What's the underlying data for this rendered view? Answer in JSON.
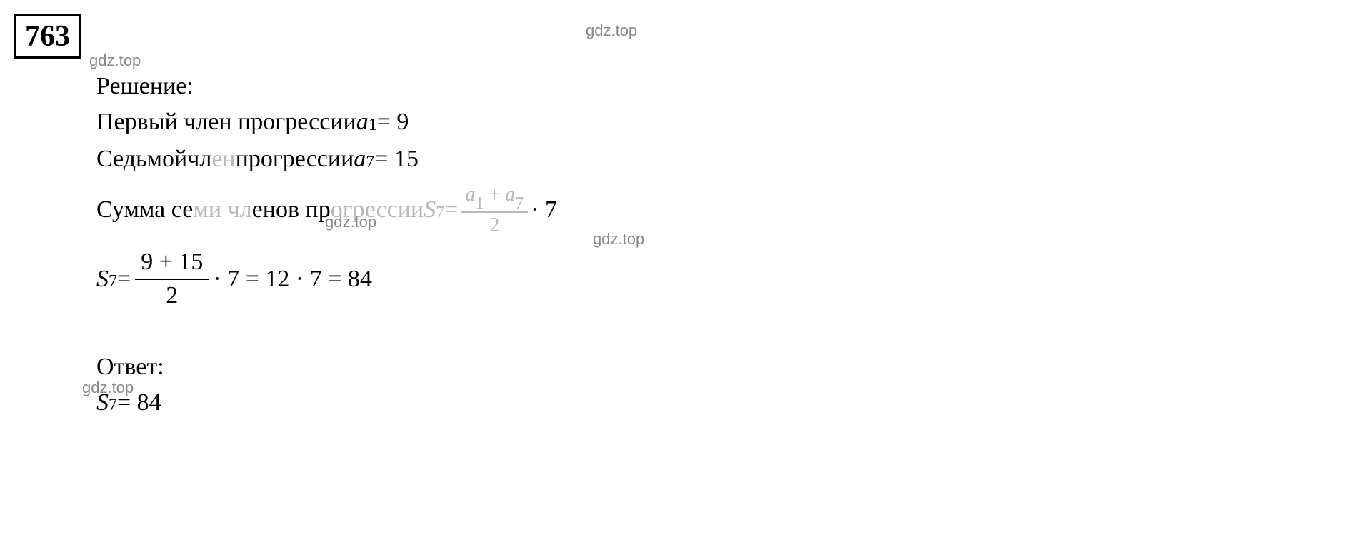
{
  "problem": {
    "number": "763"
  },
  "watermarks": {
    "text": "gdz.top"
  },
  "solution": {
    "label": "Решение:",
    "line1_text": "Первый член прогрессии ",
    "line1_var": "a",
    "line1_sub": "1",
    "line1_eq": " = 9",
    "line2_text_a": "Седьмой ",
    "line2_text_b": "чл",
    "line2_text_c": "ен",
    "line2_text_d": " прогрессии ",
    "line2_var": "a",
    "line2_sub": "7",
    "line2_eq": " = 15",
    "line3_text_a": "Сумма се",
    "line3_text_b": "ми чл",
    "line3_text_c": "енов пр",
    "line3_text_d": "огрессии ",
    "line3_lhs_var": "S",
    "line3_lhs_sub": "7",
    "line3_eq": " = ",
    "line3_frac_top_a": "a",
    "line3_frac_top_sub1": "1",
    "line3_frac_top_plus": " + ",
    "line3_frac_top_b": "a",
    "line3_frac_top_sub2": "7",
    "line3_frac_bottom": "2",
    "line3_mult": " · 7",
    "formula_lhs_var": "S",
    "formula_lhs_sub": "7",
    "formula_eq1": " = ",
    "formula_frac_top": "9 + 15",
    "formula_frac_bottom": "2",
    "formula_rest": " · 7 = 12 · 7 = 84"
  },
  "answer": {
    "label": "Ответ:",
    "result_var": "S",
    "result_sub": "7",
    "result_eq": " = 84"
  },
  "colors": {
    "text": "#000000",
    "faded": "#b8b8b8",
    "watermark": "#888888",
    "background": "#ffffff",
    "border": "#000000"
  }
}
